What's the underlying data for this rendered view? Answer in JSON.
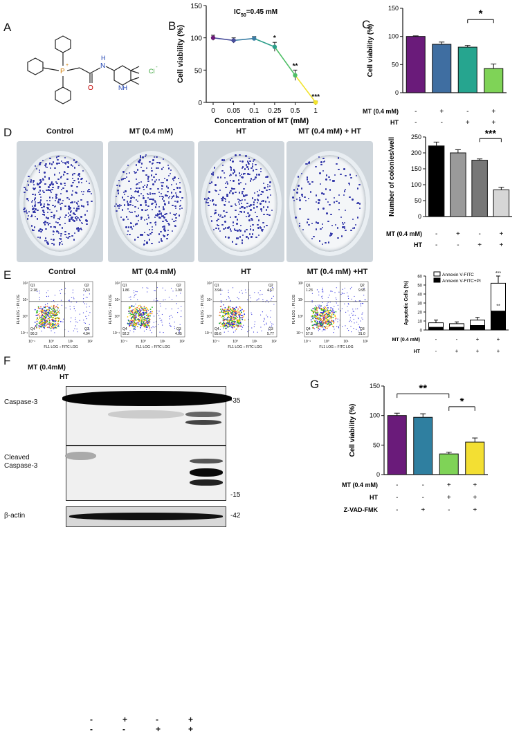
{
  "panels": {
    "A": "A",
    "B": "B",
    "C": "C",
    "D": "D",
    "E": "E",
    "F": "F",
    "G": "G"
  },
  "structure_A": {
    "counter_ion": "Cl",
    "charge": "-",
    "phosphorus": "P",
    "phos_charge": "+",
    "amide_O": "O",
    "amide_N": "N",
    "amide_H": "H",
    "ring_NH": "NH"
  },
  "chart_B": {
    "type": "line",
    "ic50_label": "IC",
    "ic50_sub": "50",
    "ic50_value": "=0.45 mM",
    "ylabel": "Cell viability (%)",
    "xlabel": "Concentration of MT (mM)",
    "categories": [
      "0",
      "0.05",
      "0.1",
      "0.25",
      "0.5",
      "1"
    ],
    "values": [
      100,
      96,
      99,
      86,
      42,
      0
    ],
    "errors": [
      4,
      4,
      3,
      7,
      8,
      2
    ],
    "significance": [
      "",
      "",
      "",
      "*",
      "**",
      "***"
    ],
    "point_colors": [
      "#6b1a78",
      "#4a4f9c",
      "#3a7ea5",
      "#2c9e8a",
      "#4fbf66",
      "#f2e32c"
    ],
    "yticks": [
      "0",
      "50",
      "100",
      "150"
    ],
    "ylim": [
      0,
      150
    ]
  },
  "chart_C": {
    "type": "bar",
    "ylabel": "Cell viability (%)",
    "values": [
      100,
      86,
      81,
      43
    ],
    "errors": [
      1,
      4,
      3,
      8
    ],
    "colors": [
      "#6a1b7a",
      "#3f6ea1",
      "#26a58f",
      "#7fd357"
    ],
    "yticks": [
      "0",
      "50",
      "100",
      "150"
    ],
    "ylim": [
      0,
      150
    ],
    "sig_label": "*",
    "rows": [
      {
        "label": "MT (0.4 mM)",
        "marks": [
          "-",
          "+",
          "-",
          "+"
        ]
      },
      {
        "label": "HT",
        "marks": [
          "-",
          "-",
          "+",
          "+"
        ]
      }
    ]
  },
  "panel_D": {
    "titles": [
      "Control",
      "MT (0.4 mM)",
      "HT",
      "MT (0.4 mM) + HT"
    ],
    "densities": [
      220,
      200,
      175,
      85
    ]
  },
  "chart_D": {
    "type": "bar",
    "ylabel": "Number of colonies/well",
    "values": [
      222,
      200,
      177,
      84
    ],
    "errors": [
      12,
      10,
      4,
      8
    ],
    "colors": [
      "#000000",
      "#9a9a9a",
      "#777777",
      "#d6d6d6"
    ],
    "yticks": [
      "0",
      "50",
      "100",
      "150",
      "200",
      "250"
    ],
    "ylim": [
      0,
      250
    ],
    "sig_label": "***",
    "rows": [
      {
        "label": "MT (0.4 mM)",
        "marks": [
          "-",
          "+",
          "-",
          "+"
        ]
      },
      {
        "label": "HT",
        "marks": [
          "-",
          "-",
          "+",
          "+"
        ]
      }
    ]
  },
  "panel_E": {
    "titles": [
      "Control",
      "MT (0.4 mM)",
      "HT",
      "MT (0.4 mM) +HT"
    ],
    "quadrants": [
      {
        "q1": "2.18",
        "q2": "2.53",
        "q3": "4.94",
        "q4": "90.3"
      },
      {
        "q1": "1.86",
        "q2": "1.90",
        "q3": "4.05",
        "q4": "92.2"
      },
      {
        "q1": "3.94",
        "q2": "4.67",
        "q3": "5.77",
        "q4": "85.6"
      },
      {
        "q1": "1.23",
        "q2": "9.95",
        "q3": "31.0",
        "q4": "57.8"
      }
    ],
    "q_labels": [
      "Q1",
      "Q2",
      "Q3",
      "Q4"
    ],
    "xlabel": "FL1 LOG :: FITC LOG",
    "ylabel": "FL4 LOG :: PI LOG",
    "ticks": [
      "10⁻¹",
      "10⁰",
      "10¹",
      "10²"
    ]
  },
  "chart_E": {
    "type": "bar",
    "ylabel": "Apoptotic Cells (%)",
    "legend": [
      "Annexin V-FITC",
      "Annexin V-FITC+PI"
    ],
    "series": [
      {
        "name": "Annexin V-FITC",
        "values": [
          5,
          4,
          6,
          31
        ]
      },
      {
        "name": "Annexin V-FITC+PI",
        "values": [
          3,
          3,
          5,
          21
        ]
      }
    ],
    "totals_err": [
      3,
      2,
      3,
      8
    ],
    "sig_top": "***",
    "sig_inner": "**",
    "yticks": [
      "0",
      "10",
      "20",
      "30",
      "40",
      "50",
      "60"
    ],
    "ylim": [
      0,
      60
    ],
    "rows": [
      {
        "label": "MT (0.4 mM)",
        "marks": [
          "-",
          "-",
          "+",
          "+"
        ]
      },
      {
        "label": "HT",
        "marks": [
          "-",
          "+",
          "+",
          "+"
        ]
      }
    ]
  },
  "panel_F": {
    "row_labels": [
      "MT (0.4mM)",
      "HT"
    ],
    "marks": [
      [
        "-",
        "+",
        "-",
        "+"
      ],
      [
        "-",
        "-",
        "+",
        "+"
      ]
    ],
    "blot1_label": "Caspase-3",
    "blot2_label_line1": "Cleaved",
    "blot2_label_line2": "Caspase-3",
    "blot3_label": "β-actin",
    "mw_35": "-35",
    "mw_15": "-15",
    "mw_42": "-42"
  },
  "chart_G": {
    "type": "bar",
    "ylabel": "Cell viability (%)",
    "values": [
      100,
      97,
      35,
      55
    ],
    "errors": [
      4,
      6,
      3,
      7
    ],
    "colors": [
      "#6a1b7a",
      "#2f7fa0",
      "#7fd357",
      "#f3df33"
    ],
    "yticks": [
      "0",
      "50",
      "100",
      "150"
    ],
    "ylim": [
      0,
      150
    ],
    "sig1": "**",
    "sig2": "*",
    "rows": [
      {
        "label": "MT (0.4 mM)",
        "marks": [
          "-",
          "-",
          "+",
          "+"
        ]
      },
      {
        "label": "HT",
        "marks": [
          "-",
          "-",
          "+",
          "+"
        ]
      },
      {
        "label": "Z-VAD-FMK",
        "marks": [
          "-",
          "+",
          "-",
          "+"
        ]
      }
    ]
  }
}
